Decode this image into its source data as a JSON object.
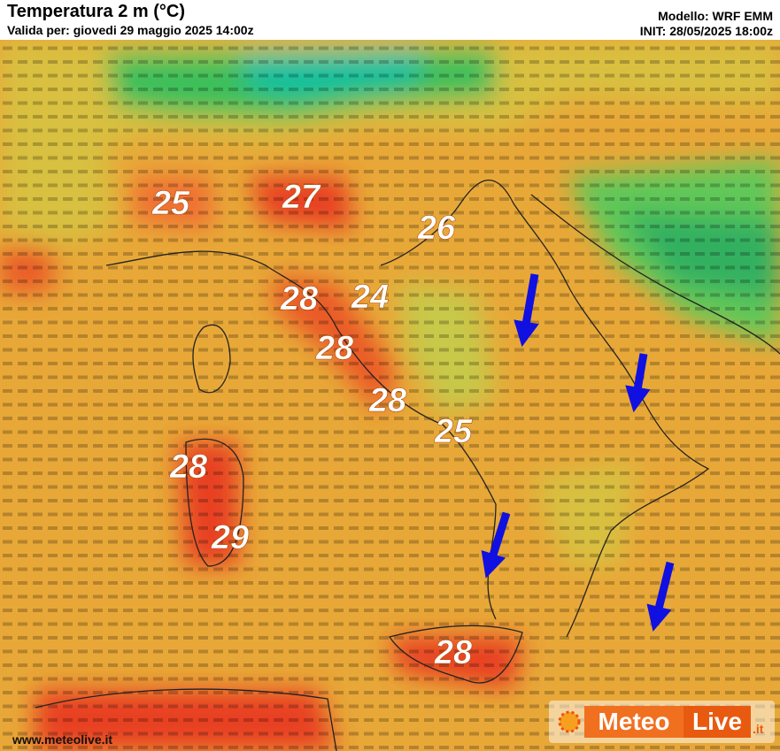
{
  "header": {
    "title": "Temperatura 2 m (°C)",
    "valid": "Valida per: giovedi 29 maggio 2025 14:00z",
    "model": "Modello: WRF EMM",
    "init": "INIT: 28/05/2025 18:00z"
  },
  "map": {
    "labels": [
      "25",
      "27",
      "26",
      "28",
      "24",
      "28",
      "28",
      "25",
      "28",
      "29",
      "28"
    ]
  },
  "footer": {
    "url": "www.meteolive.it",
    "logo_left": "Meteo",
    "logo_right": "Live",
    "logo_suffix": ".it"
  }
}
